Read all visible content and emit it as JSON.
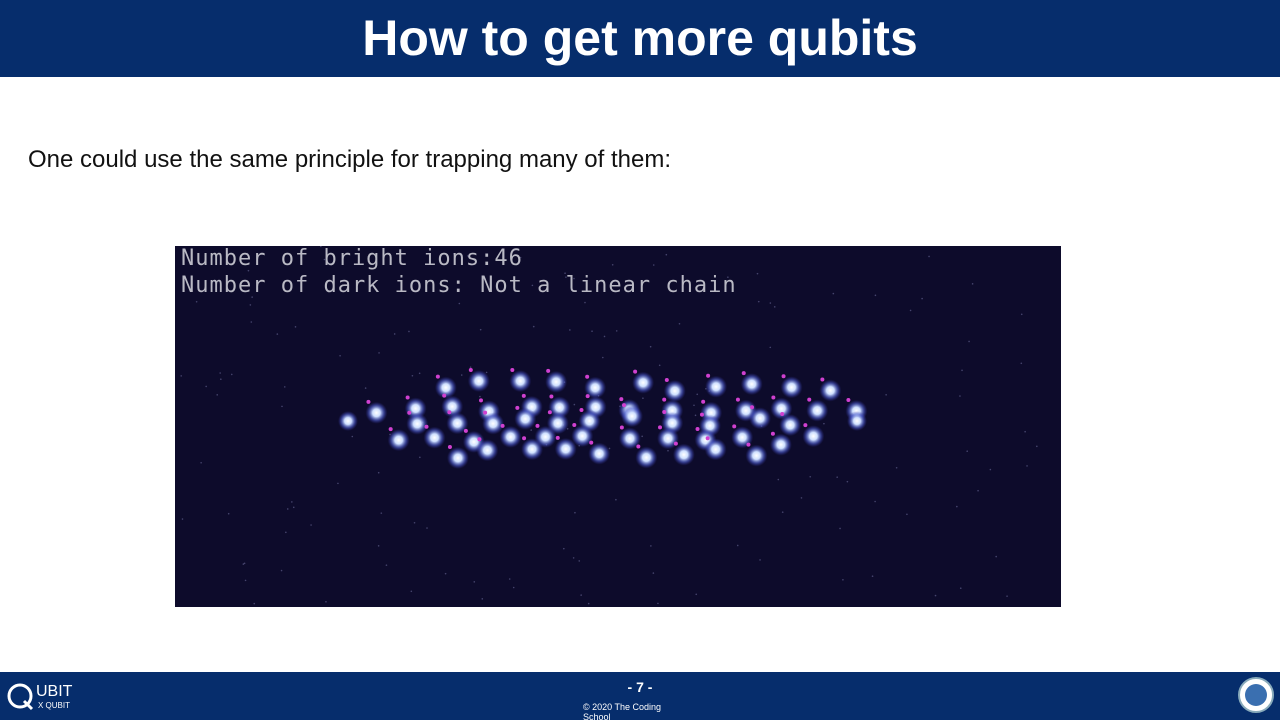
{
  "header": {
    "title": "How to get more qubits"
  },
  "body": {
    "text": "One could use the same principle for trapping many of them:"
  },
  "image": {
    "overlay_lines": [
      "Number of bright ions:46",
      "Number of dark ions: Not a linear chain"
    ]
  },
  "footer": {
    "page": "- 7 -",
    "copyright": "© 2020 The Coding School",
    "logo_left": "UBIT",
    "logo_left_sub": "X QUBIT"
  }
}
